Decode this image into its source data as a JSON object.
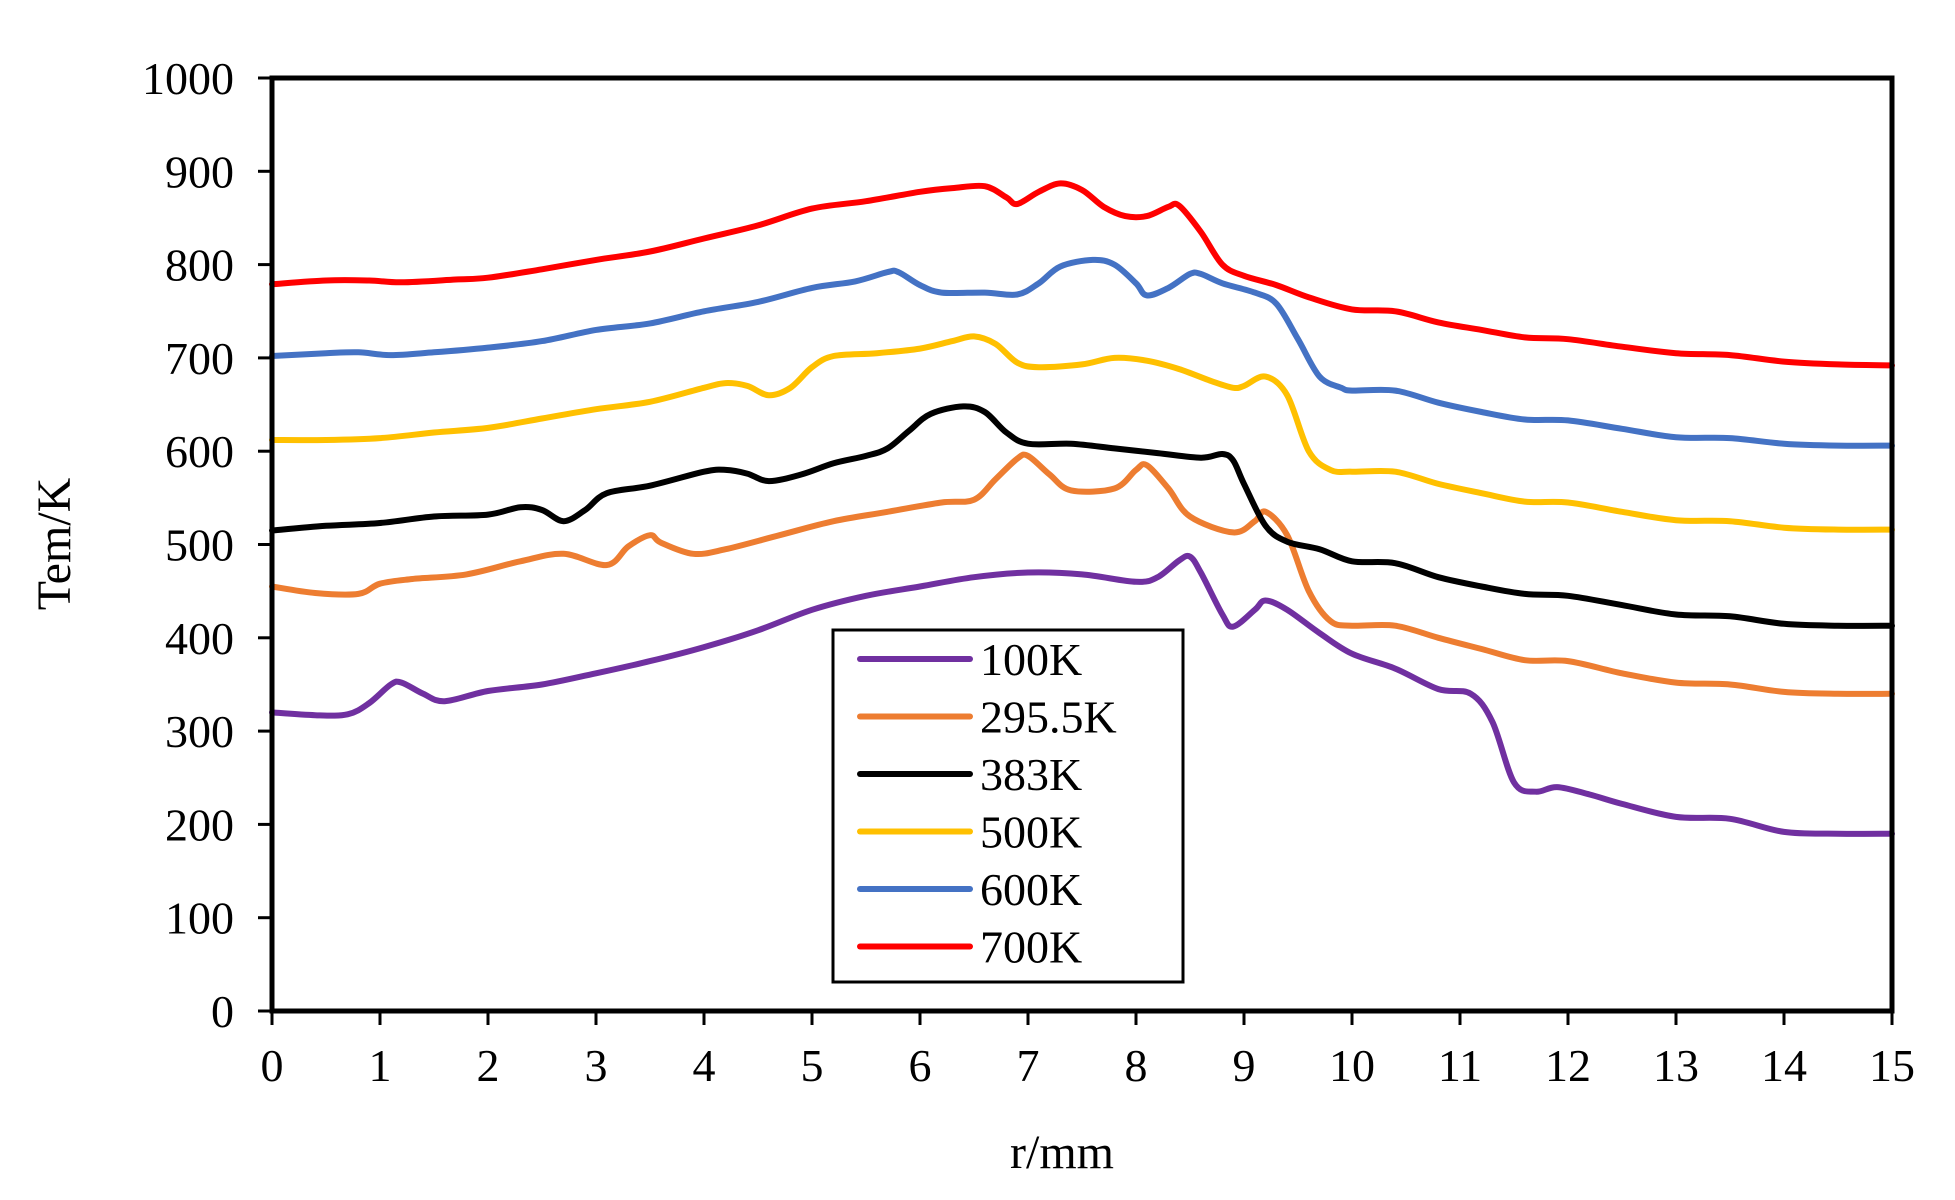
{
  "chart_data": {
    "type": "line",
    "title": "",
    "xlabel": "r/mm",
    "ylabel": "Tem/K",
    "xlim": [
      0,
      15
    ],
    "ylim": [
      0,
      1000
    ],
    "x_ticks": [
      "0",
      "1",
      "2",
      "3",
      "4",
      "5",
      "6",
      "7",
      "8",
      "9",
      "10",
      "11",
      "12",
      "13",
      "14",
      "15"
    ],
    "y_ticks": [
      "0",
      "100",
      "200",
      "300",
      "400",
      "500",
      "600",
      "700",
      "800",
      "900",
      "1000"
    ],
    "grid": false,
    "legend_position": "bottom-center",
    "series": [
      {
        "name": "100K",
        "color": "#7030a0",
        "points": [
          [
            0,
            320
          ],
          [
            0.4,
            317
          ],
          [
            0.7,
            318
          ],
          [
            0.9,
            330
          ],
          [
            1.1,
            350
          ],
          [
            1.2,
            352
          ],
          [
            1.4,
            340
          ],
          [
            1.6,
            332
          ],
          [
            2.0,
            343
          ],
          [
            2.5,
            350
          ],
          [
            3.0,
            362
          ],
          [
            3.5,
            375
          ],
          [
            4.0,
            390
          ],
          [
            4.5,
            408
          ],
          [
            5.0,
            430
          ],
          [
            5.5,
            445
          ],
          [
            6.0,
            455
          ],
          [
            6.5,
            465
          ],
          [
            7.0,
            470
          ],
          [
            7.5,
            468
          ],
          [
            8.0,
            460
          ],
          [
            8.2,
            465
          ],
          [
            8.4,
            483
          ],
          [
            8.5,
            487
          ],
          [
            8.6,
            470
          ],
          [
            8.8,
            425
          ],
          [
            8.9,
            412
          ],
          [
            9.1,
            430
          ],
          [
            9.2,
            440
          ],
          [
            9.4,
            430
          ],
          [
            9.7,
            405
          ],
          [
            10.0,
            383
          ],
          [
            10.4,
            367
          ],
          [
            10.8,
            345
          ],
          [
            11.1,
            340
          ],
          [
            11.3,
            310
          ],
          [
            11.5,
            245
          ],
          [
            11.7,
            235
          ],
          [
            11.9,
            240
          ],
          [
            12.2,
            232
          ],
          [
            12.5,
            222
          ],
          [
            13.0,
            208
          ],
          [
            13.5,
            206
          ],
          [
            14.0,
            192
          ],
          [
            14.5,
            190
          ],
          [
            15.0,
            190
          ]
        ]
      },
      {
        "name": "295.5K",
        "color": "#ed7d31",
        "points": [
          [
            0,
            455
          ],
          [
            0.4,
            448
          ],
          [
            0.8,
            447
          ],
          [
            1.0,
            458
          ],
          [
            1.3,
            463
          ],
          [
            1.8,
            468
          ],
          [
            2.3,
            482
          ],
          [
            2.7,
            490
          ],
          [
            3.1,
            478
          ],
          [
            3.3,
            498
          ],
          [
            3.5,
            510
          ],
          [
            3.6,
            502
          ],
          [
            3.9,
            490
          ],
          [
            4.2,
            495
          ],
          [
            4.7,
            510
          ],
          [
            5.2,
            525
          ],
          [
            5.7,
            535
          ],
          [
            6.2,
            545
          ],
          [
            6.5,
            548
          ],
          [
            6.7,
            570
          ],
          [
            6.9,
            592
          ],
          [
            7.0,
            595
          ],
          [
            7.2,
            575
          ],
          [
            7.4,
            558
          ],
          [
            7.8,
            560
          ],
          [
            8.0,
            580
          ],
          [
            8.1,
            585
          ],
          [
            8.3,
            560
          ],
          [
            8.5,
            530
          ],
          [
            8.9,
            513
          ],
          [
            9.1,
            525
          ],
          [
            9.2,
            535
          ],
          [
            9.4,
            510
          ],
          [
            9.6,
            450
          ],
          [
            9.8,
            418
          ],
          [
            10.0,
            413
          ],
          [
            10.4,
            413
          ],
          [
            10.8,
            400
          ],
          [
            11.2,
            388
          ],
          [
            11.6,
            376
          ],
          [
            12.0,
            375
          ],
          [
            12.5,
            362
          ],
          [
            13.0,
            352
          ],
          [
            13.5,
            350
          ],
          [
            14.0,
            342
          ],
          [
            14.5,
            340
          ],
          [
            15.0,
            340
          ]
        ]
      },
      {
        "name": "383K",
        "color": "#000000",
        "points": [
          [
            0,
            515
          ],
          [
            0.5,
            520
          ],
          [
            1.0,
            523
          ],
          [
            1.5,
            530
          ],
          [
            2.0,
            532
          ],
          [
            2.3,
            540
          ],
          [
            2.5,
            537
          ],
          [
            2.7,
            525
          ],
          [
            2.9,
            537
          ],
          [
            3.1,
            555
          ],
          [
            3.5,
            563
          ],
          [
            4.0,
            578
          ],
          [
            4.2,
            580
          ],
          [
            4.4,
            576
          ],
          [
            4.6,
            568
          ],
          [
            4.9,
            575
          ],
          [
            5.2,
            587
          ],
          [
            5.5,
            595
          ],
          [
            5.7,
            603
          ],
          [
            5.9,
            622
          ],
          [
            6.1,
            640
          ],
          [
            6.4,
            648
          ],
          [
            6.6,
            642
          ],
          [
            6.8,
            620
          ],
          [
            7.0,
            608
          ],
          [
            7.4,
            608
          ],
          [
            7.8,
            603
          ],
          [
            8.2,
            598
          ],
          [
            8.6,
            593
          ],
          [
            8.8,
            597
          ],
          [
            8.9,
            590
          ],
          [
            9.0,
            565
          ],
          [
            9.2,
            520
          ],
          [
            9.4,
            503
          ],
          [
            9.7,
            495
          ],
          [
            10.0,
            482
          ],
          [
            10.4,
            480
          ],
          [
            10.8,
            465
          ],
          [
            11.2,
            455
          ],
          [
            11.6,
            447
          ],
          [
            12.0,
            445
          ],
          [
            12.5,
            435
          ],
          [
            13.0,
            425
          ],
          [
            13.5,
            423
          ],
          [
            14.0,
            415
          ],
          [
            14.5,
            413
          ],
          [
            15.0,
            413
          ]
        ]
      },
      {
        "name": "500K",
        "color": "#ffc000",
        "points": [
          [
            0,
            612
          ],
          [
            0.5,
            612
          ],
          [
            1.0,
            614
          ],
          [
            1.5,
            620
          ],
          [
            2.0,
            625
          ],
          [
            2.5,
            635
          ],
          [
            3.0,
            645
          ],
          [
            3.5,
            653
          ],
          [
            4.0,
            668
          ],
          [
            4.2,
            673
          ],
          [
            4.4,
            670
          ],
          [
            4.6,
            660
          ],
          [
            4.8,
            668
          ],
          [
            5.0,
            690
          ],
          [
            5.2,
            702
          ],
          [
            5.6,
            705
          ],
          [
            6.0,
            710
          ],
          [
            6.3,
            718
          ],
          [
            6.5,
            723
          ],
          [
            6.7,
            715
          ],
          [
            6.9,
            695
          ],
          [
            7.1,
            690
          ],
          [
            7.5,
            693
          ],
          [
            7.8,
            700
          ],
          [
            8.1,
            697
          ],
          [
            8.4,
            688
          ],
          [
            8.7,
            675
          ],
          [
            8.9,
            668
          ],
          [
            9.0,
            670
          ],
          [
            9.2,
            680
          ],
          [
            9.4,
            660
          ],
          [
            9.6,
            600
          ],
          [
            9.8,
            580
          ],
          [
            10.0,
            578
          ],
          [
            10.4,
            578
          ],
          [
            10.8,
            565
          ],
          [
            11.2,
            555
          ],
          [
            11.6,
            546
          ],
          [
            12.0,
            545
          ],
          [
            12.5,
            535
          ],
          [
            13.0,
            526
          ],
          [
            13.5,
            525
          ],
          [
            14.0,
            518
          ],
          [
            14.5,
            516
          ],
          [
            15.0,
            516
          ]
        ]
      },
      {
        "name": "600K",
        "color": "#4472c4",
        "points": [
          [
            0,
            702
          ],
          [
            0.5,
            705
          ],
          [
            0.8,
            706
          ],
          [
            1.1,
            703
          ],
          [
            1.5,
            706
          ],
          [
            2.0,
            711
          ],
          [
            2.5,
            718
          ],
          [
            3.0,
            730
          ],
          [
            3.5,
            737
          ],
          [
            4.0,
            750
          ],
          [
            4.5,
            760
          ],
          [
            5.0,
            775
          ],
          [
            5.4,
            782
          ],
          [
            5.7,
            792
          ],
          [
            5.8,
            792
          ],
          [
            6.0,
            778
          ],
          [
            6.2,
            770
          ],
          [
            6.6,
            770
          ],
          [
            6.9,
            768
          ],
          [
            7.1,
            780
          ],
          [
            7.3,
            798
          ],
          [
            7.6,
            805
          ],
          [
            7.8,
            800
          ],
          [
            8.0,
            780
          ],
          [
            8.1,
            767
          ],
          [
            8.3,
            775
          ],
          [
            8.5,
            790
          ],
          [
            8.6,
            790
          ],
          [
            8.8,
            780
          ],
          [
            9.1,
            770
          ],
          [
            9.3,
            758
          ],
          [
            9.5,
            720
          ],
          [
            9.7,
            680
          ],
          [
            9.9,
            668
          ],
          [
            10.0,
            665
          ],
          [
            10.4,
            665
          ],
          [
            10.8,
            652
          ],
          [
            11.2,
            642
          ],
          [
            11.6,
            634
          ],
          [
            12.0,
            633
          ],
          [
            12.5,
            624
          ],
          [
            13.0,
            615
          ],
          [
            13.5,
            614
          ],
          [
            14.0,
            608
          ],
          [
            14.5,
            606
          ],
          [
            15.0,
            606
          ]
        ]
      },
      {
        "name": "700K",
        "color": "#ff0000",
        "points": [
          [
            0,
            779
          ],
          [
            0.5,
            783
          ],
          [
            0.9,
            783
          ],
          [
            1.2,
            781
          ],
          [
            1.7,
            784
          ],
          [
            2.0,
            786
          ],
          [
            2.5,
            795
          ],
          [
            3.0,
            805
          ],
          [
            3.5,
            814
          ],
          [
            4.0,
            828
          ],
          [
            4.5,
            842
          ],
          [
            5.0,
            860
          ],
          [
            5.5,
            868
          ],
          [
            6.0,
            878
          ],
          [
            6.3,
            882
          ],
          [
            6.6,
            884
          ],
          [
            6.8,
            872
          ],
          [
            6.9,
            865
          ],
          [
            7.1,
            878
          ],
          [
            7.3,
            887
          ],
          [
            7.5,
            880
          ],
          [
            7.7,
            862
          ],
          [
            7.9,
            852
          ],
          [
            8.1,
            852
          ],
          [
            8.3,
            862
          ],
          [
            8.4,
            863
          ],
          [
            8.6,
            835
          ],
          [
            8.8,
            800
          ],
          [
            9.0,
            788
          ],
          [
            9.3,
            778
          ],
          [
            9.6,
            765
          ],
          [
            10.0,
            752
          ],
          [
            10.4,
            750
          ],
          [
            10.8,
            738
          ],
          [
            11.2,
            730
          ],
          [
            11.6,
            722
          ],
          [
            12.0,
            720
          ],
          [
            12.5,
            712
          ],
          [
            13.0,
            705
          ],
          [
            13.5,
            703
          ],
          [
            14.0,
            696
          ],
          [
            14.5,
            693
          ],
          [
            15.0,
            692
          ]
        ]
      }
    ]
  }
}
